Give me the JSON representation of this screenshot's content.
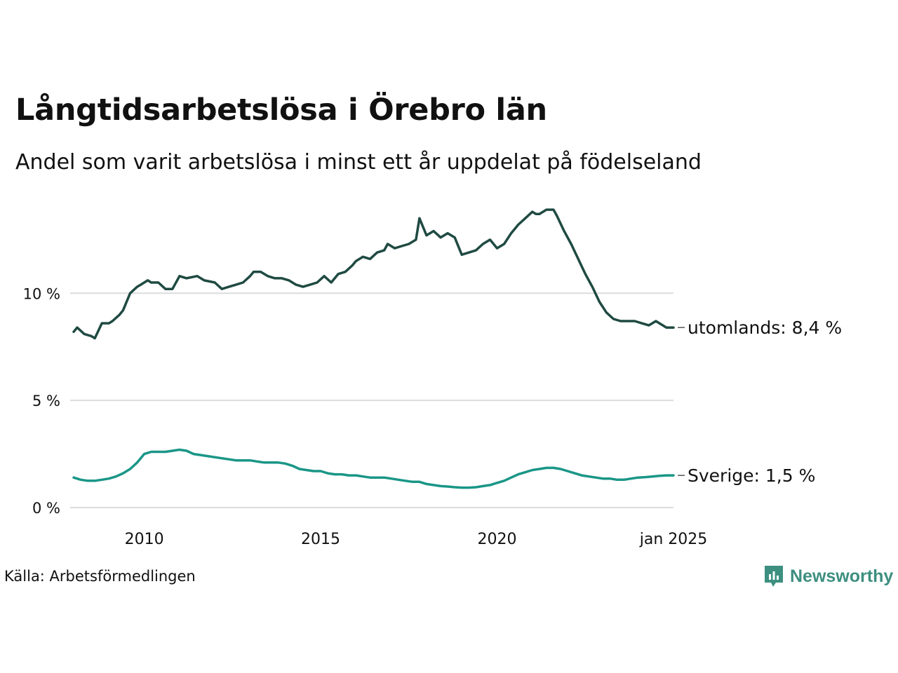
{
  "title": "Långtidsarbetslösa i Örebro län",
  "subtitle": "Andel som varit arbetslösa i minst ett år uppdelat på födelseland",
  "source": "Källa: Arbetsförmedlingen",
  "logo_text": "Newsworthy",
  "colors": {
    "utomlands": "#1f4a42",
    "sverige": "#1a9687",
    "grid": "#dcdcdc",
    "logo": "#3d8f80"
  },
  "chart_data": {
    "type": "line",
    "ylim": [
      0,
      14
    ],
    "xlim": [
      2008.0,
      2025.0
    ],
    "grid": true,
    "y_ticks": [
      {
        "value": 0,
        "label": "0 %"
      },
      {
        "value": 5,
        "label": "5 %"
      },
      {
        "value": 10,
        "label": "10 %"
      }
    ],
    "x_ticks": [
      {
        "value": 2010,
        "label": "2010"
      },
      {
        "value": 2015,
        "label": "2015"
      },
      {
        "value": 2020,
        "label": "2020"
      },
      {
        "value": 2025,
        "label": "jan 2025"
      }
    ],
    "series": [
      {
        "key": "utomlands",
        "label": "utomlands: 8,4 %",
        "x": [
          2008.0,
          2008.1,
          2008.3,
          2008.5,
          2008.6,
          2008.8,
          2009.0,
          2009.1,
          2009.3,
          2009.4,
          2009.6,
          2009.8,
          2009.9,
          2010.1,
          2010.2,
          2010.4,
          2010.6,
          2010.8,
          2011.0,
          2011.2,
          2011.5,
          2011.7,
          2012.0,
          2012.2,
          2012.4,
          2012.6,
          2012.8,
          2013.0,
          2013.1,
          2013.3,
          2013.5,
          2013.7,
          2013.9,
          2014.1,
          2014.3,
          2014.5,
          2014.7,
          2014.9,
          2015.1,
          2015.3,
          2015.5,
          2015.7,
          2015.9,
          2016.0,
          2016.2,
          2016.4,
          2016.6,
          2016.8,
          2016.9,
          2017.1,
          2017.3,
          2017.5,
          2017.7,
          2017.8,
          2018.0,
          2018.2,
          2018.4,
          2018.6,
          2018.8,
          2019.0,
          2019.2,
          2019.4,
          2019.6,
          2019.8,
          2020.0,
          2020.2,
          2020.4,
          2020.6,
          2020.8,
          2021.0,
          2021.1,
          2021.2,
          2021.4,
          2021.6,
          2021.7,
          2021.9,
          2022.1,
          2022.3,
          2022.5,
          2022.7,
          2022.9,
          2023.1,
          2023.3,
          2023.5,
          2023.7,
          2023.9,
          2024.1,
          2024.3,
          2024.5,
          2024.6,
          2024.8,
          2025.0
        ],
        "values": [
          8.2,
          8.4,
          8.1,
          8.0,
          7.9,
          8.6,
          8.6,
          8.7,
          9.0,
          9.2,
          10.0,
          10.3,
          10.4,
          10.6,
          10.5,
          10.5,
          10.2,
          10.2,
          10.8,
          10.7,
          10.8,
          10.6,
          10.5,
          10.2,
          10.3,
          10.4,
          10.5,
          10.8,
          11.0,
          11.0,
          10.8,
          10.7,
          10.7,
          10.6,
          10.4,
          10.3,
          10.4,
          10.5,
          10.8,
          10.5,
          10.9,
          11.0,
          11.3,
          11.5,
          11.7,
          11.6,
          11.9,
          12.0,
          12.3,
          12.1,
          12.2,
          12.3,
          12.5,
          13.5,
          12.7,
          12.9,
          12.6,
          12.8,
          12.6,
          11.8,
          11.9,
          12.0,
          12.3,
          12.5,
          12.1,
          12.3,
          12.8,
          13.2,
          13.5,
          13.8,
          13.7,
          13.7,
          13.9,
          13.9,
          13.6,
          12.9,
          12.3,
          11.6,
          10.9,
          10.3,
          9.6,
          9.1,
          8.8,
          8.7,
          8.7,
          8.7,
          8.6,
          8.5,
          8.7,
          8.6,
          8.4,
          8.4
        ]
      },
      {
        "key": "sverige",
        "label": "Sverige: 1,5 %",
        "x": [
          2008.0,
          2008.2,
          2008.4,
          2008.6,
          2008.8,
          2009.0,
          2009.2,
          2009.4,
          2009.6,
          2009.8,
          2010.0,
          2010.2,
          2010.4,
          2010.6,
          2010.8,
          2011.0,
          2011.2,
          2011.4,
          2011.6,
          2011.8,
          2012.0,
          2012.2,
          2012.4,
          2012.6,
          2012.8,
          2013.0,
          2013.2,
          2013.4,
          2013.6,
          2013.8,
          2014.0,
          2014.2,
          2014.4,
          2014.6,
          2014.8,
          2015.0,
          2015.2,
          2015.4,
          2015.6,
          2015.8,
          2016.0,
          2016.2,
          2016.4,
          2016.6,
          2016.8,
          2017.0,
          2017.2,
          2017.4,
          2017.6,
          2017.8,
          2018.0,
          2018.2,
          2018.4,
          2018.6,
          2018.8,
          2019.0,
          2019.2,
          2019.4,
          2019.6,
          2019.8,
          2020.0,
          2020.2,
          2020.4,
          2020.6,
          2020.8,
          2021.0,
          2021.2,
          2021.4,
          2021.6,
          2021.8,
          2022.0,
          2022.2,
          2022.4,
          2022.6,
          2022.8,
          2023.0,
          2023.2,
          2023.4,
          2023.6,
          2023.8,
          2024.0,
          2024.2,
          2024.4,
          2024.6,
          2024.8,
          2025.0
        ],
        "values": [
          1.4,
          1.3,
          1.25,
          1.25,
          1.3,
          1.35,
          1.45,
          1.6,
          1.8,
          2.1,
          2.5,
          2.6,
          2.6,
          2.6,
          2.65,
          2.7,
          2.65,
          2.5,
          2.45,
          2.4,
          2.35,
          2.3,
          2.25,
          2.2,
          2.2,
          2.2,
          2.15,
          2.1,
          2.1,
          2.1,
          2.05,
          1.95,
          1.8,
          1.75,
          1.7,
          1.7,
          1.6,
          1.55,
          1.55,
          1.5,
          1.5,
          1.45,
          1.4,
          1.4,
          1.4,
          1.35,
          1.3,
          1.25,
          1.2,
          1.2,
          1.1,
          1.05,
          1.0,
          0.98,
          0.95,
          0.93,
          0.93,
          0.95,
          1.0,
          1.05,
          1.15,
          1.25,
          1.4,
          1.55,
          1.65,
          1.75,
          1.8,
          1.85,
          1.85,
          1.8,
          1.7,
          1.6,
          1.5,
          1.45,
          1.4,
          1.35,
          1.35,
          1.3,
          1.3,
          1.35,
          1.4,
          1.42,
          1.45,
          1.48,
          1.5,
          1.5
        ]
      }
    ]
  }
}
